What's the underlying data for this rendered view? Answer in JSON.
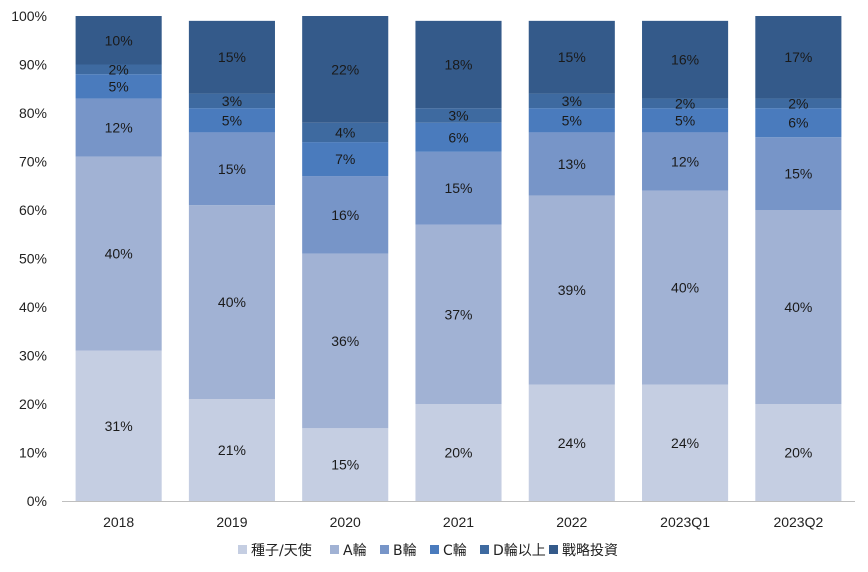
{
  "chart_data": {
    "type": "bar",
    "stacked": true,
    "percent": true,
    "categories": [
      "2018",
      "2019",
      "2020",
      "2021",
      "2022",
      "2023Q1",
      "2023Q2"
    ],
    "ylim": [
      0,
      100
    ],
    "yticks": [
      "0%",
      "10%",
      "20%",
      "30%",
      "40%",
      "50%",
      "60%",
      "70%",
      "80%",
      "90%",
      "100%"
    ],
    "legend_position": "bottom",
    "grid": false,
    "series": [
      {
        "name": "種子/天使",
        "color": "#c5cee2",
        "values": [
          31,
          21,
          15,
          20,
          24,
          24,
          20
        ],
        "labels": [
          "31%",
          "21%",
          "15%",
          "20%",
          "24%",
          "24%",
          "20%"
        ]
      },
      {
        "name": "A輪",
        "color": "#a1b2d4",
        "values": [
          40,
          40,
          36,
          37,
          39,
          40,
          40
        ],
        "labels": [
          "40%",
          "40%",
          "36%",
          "37%",
          "39%",
          "40%",
          "40%"
        ]
      },
      {
        "name": "B輪",
        "color": "#7795c8",
        "values": [
          12,
          15,
          16,
          15,
          13,
          12,
          15
        ],
        "labels": [
          "12%",
          "15%",
          "16%",
          "15%",
          "13%",
          "12%",
          "15%"
        ]
      },
      {
        "name": "C輪",
        "color": "#4a7bbd",
        "values": [
          5,
          5,
          7,
          6,
          5,
          5,
          6
        ],
        "labels": [
          "5%",
          "5%",
          "7%",
          "6%",
          "5%",
          "5%",
          "6%"
        ]
      },
      {
        "name": "D輪以上",
        "color": "#3e6aa0",
        "values": [
          2,
          3,
          4,
          3,
          3,
          2,
          2
        ],
        "labels": [
          "2%",
          "3%",
          "4%",
          "3%",
          "3%",
          "2%",
          "2%"
        ]
      },
      {
        "name": "戰略投資",
        "color": "#345a8a",
        "values": [
          10,
          15,
          22,
          18,
          15,
          16,
          17
        ],
        "labels": [
          "10%",
          "15%",
          "22%",
          "18%",
          "15%",
          "16%",
          "17%"
        ]
      }
    ]
  }
}
